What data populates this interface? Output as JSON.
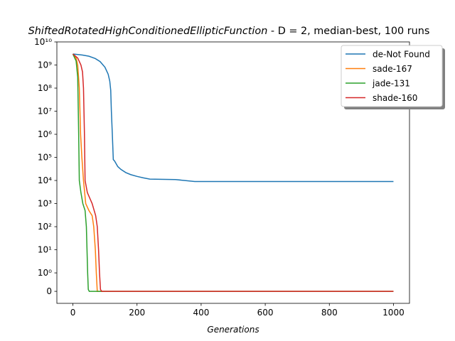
{
  "chart_data": {
    "type": "line",
    "title_function": "ShiftedRotatedHighConditionedEllipticFunction",
    "title_rest": " - D = 2, median-best, 100 runs",
    "xlabel": "Generations",
    "yscale": "symlog",
    "linthresh": 1,
    "linscale": 0.72,
    "xlim": [
      -50,
      1050
    ],
    "xticks": [
      0,
      200,
      400,
      600,
      800,
      1000
    ],
    "ylim": [
      -0.65,
      10000000000
    ],
    "yticks": [
      0,
      {
        "value": 1,
        "label": "10⁰"
      },
      {
        "value": 10,
        "label": "10¹"
      },
      {
        "value": 100,
        "label": "10²"
      },
      {
        "value": 1000,
        "label": "10³"
      },
      {
        "value": 10000,
        "label": "10⁴"
      },
      {
        "value": 100000,
        "label": "10⁵"
      },
      {
        "value": 1000000,
        "label": "10⁶"
      },
      {
        "value": 10000000,
        "label": "10⁷"
      },
      {
        "value": 100000000,
        "label": "10⁸"
      },
      {
        "value": 1000000000,
        "label": "10⁹"
      },
      {
        "value": 10000000000,
        "label": "10¹⁰"
      }
    ],
    "legend": "upper right",
    "series": [
      {
        "name": "de-Not Found",
        "color": "#1f77b4",
        "x": [
          0,
          30,
          50,
          70,
          85,
          100,
          110,
          115,
          118,
          120,
          123,
          126,
          130,
          140,
          150,
          165,
          180,
          200,
          220,
          240,
          320,
          380,
          500,
          1000
        ],
        "values": [
          3000000000,
          2700000000,
          2400000000,
          1900000000,
          1400000000,
          800000000,
          400000000,
          200000000,
          80000000,
          10000000,
          1000000,
          80000,
          70000,
          40000,
          30000,
          22000,
          18000,
          15000,
          13000,
          11500,
          11000,
          9000,
          9000,
          9000
        ]
      },
      {
        "name": "sade-167",
        "color": "#ff7f0e",
        "x": [
          0,
          10,
          15,
          20,
          24,
          28,
          33,
          40,
          50,
          60,
          65,
          70,
          73,
          76,
          1000
        ],
        "values": [
          3000000000,
          2000000000,
          1000000000,
          100000000,
          1000000,
          100000,
          10000,
          1000,
          500,
          300,
          100,
          10,
          1,
          0,
          0
        ]
      },
      {
        "name": "jade-131",
        "color": "#2ca02c",
        "x": [
          0,
          10,
          15,
          18,
          20,
          25,
          31,
          38,
          42,
          44,
          46,
          48,
          51,
          55,
          1000
        ],
        "values": [
          3000000000,
          1500000000,
          300000000,
          1000000,
          10000,
          3000,
          1000,
          500,
          100,
          10,
          1,
          0.1,
          0,
          0,
          0
        ]
      },
      {
        "name": "shade-160",
        "color": "#d62728",
        "x": [
          0,
          15,
          25,
          30,
          33,
          36,
          38,
          45,
          60,
          71,
          76,
          80,
          83,
          86,
          90,
          1000
        ],
        "values": [
          3000000000,
          2000000000,
          1000000000,
          500000000,
          100000000,
          1000000,
          10000,
          3000,
          1000,
          300,
          100,
          10,
          1,
          0.1,
          0,
          0
        ]
      }
    ]
  }
}
